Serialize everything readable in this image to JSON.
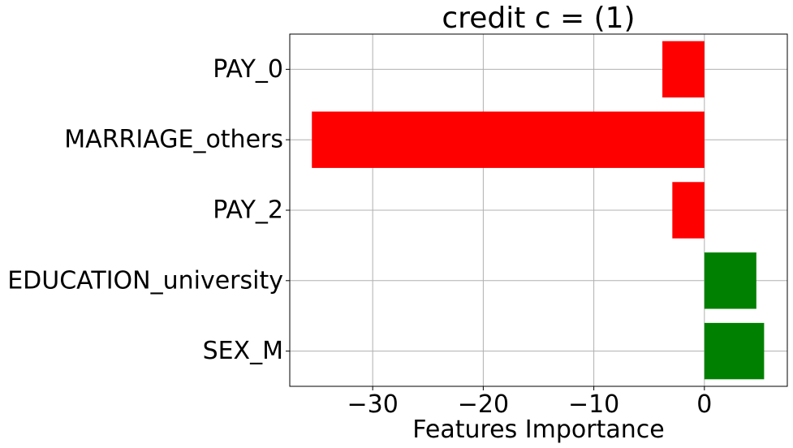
{
  "chart_data": {
    "type": "bar",
    "orientation": "horizontal",
    "title": "credit c = (1)",
    "xlabel": "Features Importance",
    "ylabel": "",
    "categories": [
      "PAY_0",
      "MARRIAGE_others",
      "PAY_2",
      "EDUCATION_university",
      "SEX_M"
    ],
    "values": [
      -3.8,
      -35.5,
      -2.9,
      4.7,
      5.4
    ],
    "colors": [
      "#ff0000",
      "#ff0000",
      "#ff0000",
      "#008000",
      "#008000"
    ],
    "positive_color": "#008000",
    "negative_color": "#ff0000",
    "xlim": [
      -37.5,
      7.5
    ],
    "xticks": [
      -30,
      -20,
      -10,
      0
    ],
    "xtick_labels": [
      "−30",
      "−20",
      "−10",
      "0"
    ],
    "grid": true
  }
}
